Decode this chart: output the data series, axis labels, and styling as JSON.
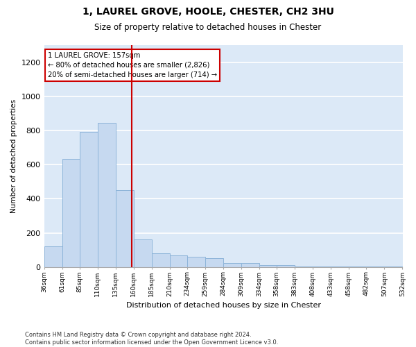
{
  "title": "1, LAUREL GROVE, HOOLE, CHESTER, CH2 3HU",
  "subtitle": "Size of property relative to detached houses in Chester",
  "xlabel": "Distribution of detached houses by size in Chester",
  "ylabel": "Number of detached properties",
  "bar_color": "#c6d9f0",
  "bar_edge_color": "#8db4d9",
  "background_color": "#dce9f7",
  "grid_color": "#ffffff",
  "marker_value": 157,
  "marker_label": "1 LAUREL GROVE: 157sqm",
  "marker_line_color": "#cc0000",
  "annotation_line1": "1 LAUREL GROVE: 157sqm",
  "annotation_line2": "← 80% of detached houses are smaller (2,826)",
  "annotation_line3": "20% of semi-detached houses are larger (714) →",
  "annotation_box_color": "#cc0000",
  "footer": "Contains HM Land Registry data © Crown copyright and database right 2024.\nContains public sector information licensed under the Open Government Licence v3.0.",
  "bins": [
    36,
    61,
    85,
    110,
    135,
    160,
    185,
    210,
    234,
    259,
    284,
    309,
    334,
    358,
    383,
    408,
    433,
    458,
    482,
    507,
    532
  ],
  "counts": [
    120,
    635,
    790,
    845,
    450,
    160,
    80,
    70,
    60,
    50,
    22,
    22,
    12,
    12,
    5,
    5,
    5,
    5,
    5,
    5
  ],
  "ylim": [
    0,
    1300
  ],
  "yticks": [
    0,
    200,
    400,
    600,
    800,
    1000,
    1200
  ]
}
